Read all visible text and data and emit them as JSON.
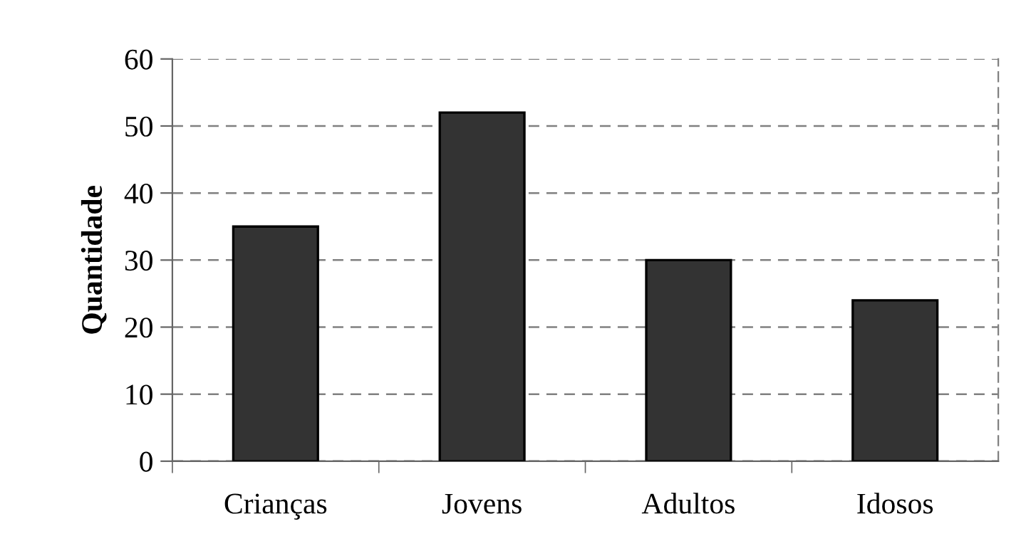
{
  "chart_data": {
    "type": "bar",
    "ylabel": "Quantidade",
    "categories": [
      "Crianças",
      "Jovens",
      "Adultos",
      "Idosos"
    ],
    "values": [
      35,
      52,
      30,
      24
    ],
    "color": "#333333",
    "ylim": [
      0,
      60
    ],
    "yticks": [
      0,
      10,
      20,
      30,
      40,
      50,
      60
    ],
    "grid": "y",
    "legend": false
  }
}
